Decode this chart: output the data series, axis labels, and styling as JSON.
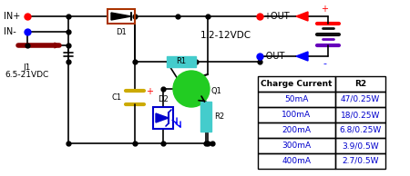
{
  "bg_color": "#ffffff",
  "table_header": [
    "Charge Current",
    "R2"
  ],
  "table_rows": [
    [
      "50mA",
      "47/0.25W"
    ],
    [
      "100mA",
      "18/0.25W"
    ],
    [
      "200mA",
      "6.8/0.25W"
    ],
    [
      "300mA",
      "3.9/0.5W"
    ],
    [
      "400mA",
      "2.7/0.5W"
    ]
  ],
  "voltage_label": "1.2-12VDC",
  "j1_label": "J1",
  "j1_label2": "6.5-21VDC",
  "wire_color": "#000000",
  "red_color": "#ff0000",
  "blue_color": "#0000ff",
  "green_color": "#22cc22",
  "cyan_color": "#44cccc",
  "diode_color": "#aa3300",
  "zener_color": "#0000cc",
  "table_text_color": "#0000cc",
  "table_header_color": "#000000",
  "table_border_color": "#000000"
}
